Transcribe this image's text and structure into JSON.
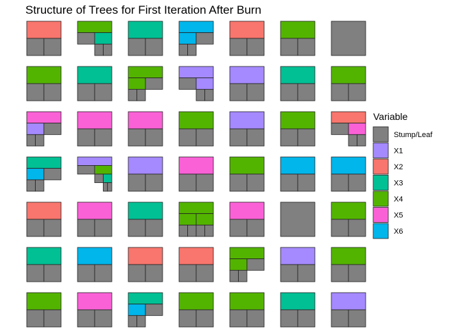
{
  "chart_data": {
    "type": "icicle-grid",
    "title": "Structure of Trees for First Iteration After Burn",
    "legend": {
      "title": "Variable",
      "position": "right",
      "entries": [
        "Stump/Leaf",
        "X1",
        "X2",
        "X3",
        "X4",
        "X5",
        "X6"
      ]
    },
    "colors": {
      "Stump/Leaf": "#808080",
      "X1": "#A58AFF",
      "X2": "#F8766D",
      "X3": "#00C094",
      "X4": "#53B400",
      "X5": "#FB61D7",
      "X6": "#00B6EB"
    },
    "grid": {
      "rows": 7,
      "cols": 7
    },
    "trees": [
      {
        "v": "X2",
        "c": [
          "L",
          "L"
        ]
      },
      {
        "v": "X4",
        "c": [
          "L",
          {
            "v": "X3",
            "c": [
              "L",
              "L"
            ]
          }
        ]
      },
      {
        "v": "X3",
        "c": [
          "L",
          "L"
        ]
      },
      {
        "v": "X6",
        "c": [
          {
            "v": "X6",
            "c": [
              "L",
              "L"
            ]
          },
          "L"
        ]
      },
      {
        "v": "X2",
        "c": [
          "L",
          "L"
        ]
      },
      {
        "v": "X4",
        "c": [
          "L",
          "L"
        ]
      },
      "L",
      {
        "v": "X4",
        "c": [
          "L",
          "L"
        ]
      },
      {
        "v": "X3",
        "c": [
          "L",
          "L"
        ]
      },
      {
        "v": "X4",
        "c": [
          {
            "v": "X4",
            "c": [
              "L",
              "L"
            ]
          },
          "L"
        ]
      },
      {
        "v": "X1",
        "c": [
          "L",
          {
            "v": "X1",
            "c": [
              "L",
              "L"
            ]
          }
        ]
      },
      {
        "v": "X1",
        "c": [
          "L",
          "L"
        ]
      },
      {
        "v": "X3",
        "c": [
          "L",
          "L"
        ]
      },
      {
        "v": "X4",
        "c": [
          "L",
          "L"
        ]
      },
      {
        "v": "X5",
        "c": [
          {
            "v": "X1",
            "c": [
              "L",
              "L"
            ]
          },
          "L"
        ]
      },
      {
        "v": "X5",
        "c": [
          "L",
          "L"
        ]
      },
      {
        "v": "X5",
        "c": [
          "L",
          "L"
        ]
      },
      {
        "v": "X4",
        "c": [
          "L",
          "L"
        ]
      },
      {
        "v": "X1",
        "c": [
          "L",
          "L"
        ]
      },
      {
        "v": "X4",
        "c": [
          "L",
          "L"
        ]
      },
      {
        "v": "X2",
        "c": [
          "L",
          {
            "v": "X5",
            "c": [
              "L",
              "L"
            ]
          }
        ]
      },
      {
        "v": "X3",
        "c": [
          {
            "v": "X6",
            "c": [
              "L",
              "L"
            ]
          },
          "L"
        ]
      },
      {
        "v": "X1",
        "c": [
          "L",
          {
            "v": "X4",
            "c": [
              "L",
              {
                "v": "X3",
                "c": [
                  "L",
                  "L"
                ]
              }
            ]
          }
        ]
      },
      {
        "v": "X1",
        "c": [
          "L",
          "L"
        ]
      },
      {
        "v": "X5",
        "c": [
          "L",
          "L"
        ]
      },
      {
        "v": "X4",
        "c": [
          "L",
          "L"
        ]
      },
      {
        "v": "X6",
        "c": [
          "L",
          "L"
        ]
      },
      {
        "v": "X6",
        "c": [
          "L",
          "L"
        ]
      },
      {
        "v": "X2",
        "c": [
          "L",
          "L"
        ]
      },
      {
        "v": "X5",
        "c": [
          "L",
          "L"
        ]
      },
      {
        "v": "X3",
        "c": [
          "L",
          "L"
        ]
      },
      {
        "v": "X4",
        "c": [
          {
            "v": "X4",
            "c": [
              "L",
              "L"
            ]
          },
          {
            "v": "X4",
            "c": [
              "L",
              "L"
            ]
          }
        ]
      },
      {
        "v": "X5",
        "c": [
          "L",
          "L"
        ]
      },
      "L",
      {
        "v": "X4",
        "c": [
          "L",
          "L"
        ]
      },
      {
        "v": "X3",
        "c": [
          "L",
          "L"
        ]
      },
      {
        "v": "X6",
        "c": [
          "L",
          "L"
        ]
      },
      {
        "v": "X2",
        "c": [
          "L",
          "L"
        ]
      },
      {
        "v": "X2",
        "c": [
          "L",
          "L"
        ]
      },
      {
        "v": "X4",
        "c": [
          {
            "v": "X4",
            "c": [
              "L",
              "L"
            ]
          },
          "L"
        ]
      },
      {
        "v": "X1",
        "c": [
          "L",
          "L"
        ]
      },
      {
        "v": "X4",
        "c": [
          "L",
          "L"
        ]
      },
      {
        "v": "X4",
        "c": [
          "L",
          "L"
        ]
      },
      {
        "v": "X5",
        "c": [
          "L",
          "L"
        ]
      },
      {
        "v": "X3",
        "c": [
          {
            "v": "X6",
            "c": [
              "L",
              "L"
            ]
          },
          "L"
        ]
      },
      {
        "v": "X4",
        "c": [
          "L",
          "L"
        ]
      },
      {
        "v": "X4",
        "c": [
          "L",
          "L"
        ]
      },
      {
        "v": "X3",
        "c": [
          "L",
          "L"
        ]
      },
      {
        "v": "X1",
        "c": [
          "L",
          "L"
        ]
      }
    ]
  }
}
